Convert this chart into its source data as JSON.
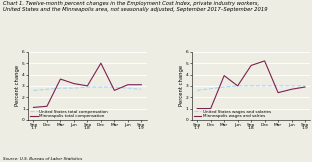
{
  "title_line1": "Chart 1. Twelve-month percent changes in the Employment Cost Index, private industry workers,",
  "title_line2": "United States and the Minneapolis area, not seasonally adjusted, September 2017–September 2019",
  "source": "Source: U.S. Bureau of Labor Statistics",
  "left": {
    "ylabel": "Percent change",
    "ylim": [
      0.0,
      6.0
    ],
    "yticks": [
      0.0,
      1.0,
      2.0,
      3.0,
      4.0,
      5.0,
      6.0
    ],
    "xtick_labels": [
      "Sep\n'17",
      "Dec",
      "Mar",
      "Jun",
      "Sep\n'18",
      "Dec",
      "Mar",
      "Jun",
      "Sep\n'19"
    ],
    "us_data": [
      2.6,
      2.7,
      2.8,
      2.8,
      2.9,
      2.9,
      2.9,
      2.8,
      2.7
    ],
    "mpls_data": [
      1.1,
      1.2,
      3.6,
      3.2,
      3.0,
      5.0,
      2.6,
      3.1,
      3.1
    ],
    "us_label": "United States total compensation",
    "mpls_label": "Minneapolis total compensation",
    "us_color": "#aad4f0",
    "mpls_color": "#7B2252"
  },
  "right": {
    "ylabel": "Percent change",
    "ylim": [
      0.0,
      6.0
    ],
    "yticks": [
      0.0,
      1.0,
      2.0,
      3.0,
      4.0,
      5.0,
      6.0
    ],
    "xtick_labels": [
      "Sep\n'17",
      "Dec",
      "Mar",
      "Jun",
      "Sep\n'18",
      "Dec",
      "Mar",
      "Jun",
      "Sep\n'19"
    ],
    "us_data": [
      2.6,
      2.75,
      2.9,
      3.0,
      3.0,
      3.0,
      3.0,
      3.0,
      3.0
    ],
    "mpls_data": [
      1.0,
      1.0,
      3.9,
      3.0,
      4.8,
      5.2,
      2.4,
      2.7,
      2.9
    ],
    "us_label": "United States wages and salaries",
    "mpls_label": "Minneapolis wages and salries",
    "us_color": "#aad4f0",
    "mpls_color": "#7B2252"
  },
  "bg_color": "#eeede3",
  "plot_bg": "#eeede3",
  "grid_color": "#ffffff",
  "title_fontsize": 3.8,
  "label_fontsize": 3.8,
  "tick_fontsize": 3.2,
  "legend_fontsize": 3.0,
  "source_fontsize": 3.0
}
